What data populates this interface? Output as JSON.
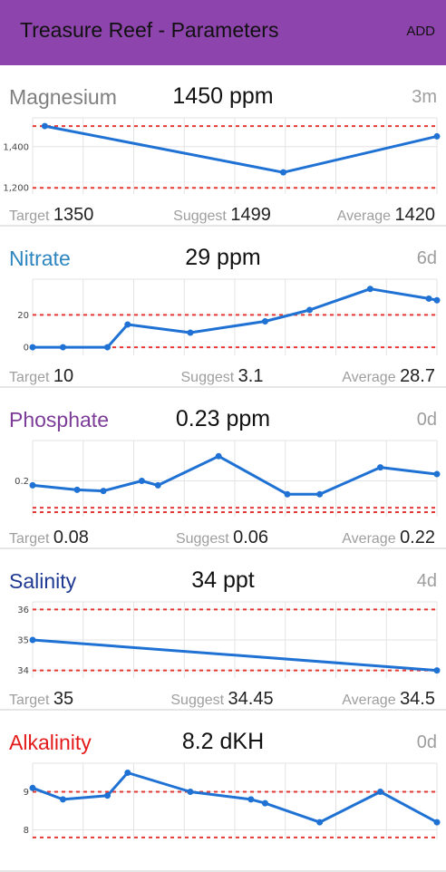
{
  "app_bar": {
    "title": "Treasure Reef - Parameters",
    "add_label": "ADD",
    "background": "#8e44ad"
  },
  "labels": {
    "target": "Target",
    "suggest": "Suggest",
    "average": "Average"
  },
  "parameters": [
    {
      "id": "magnesium",
      "name": "Magnesium",
      "name_color": "#7f7f7f",
      "value": "1450 ppm",
      "age": "3m",
      "target": "1350",
      "suggest": "1499",
      "average": "1420",
      "chart_data": {
        "type": "line",
        "y_ticks": [
          1200,
          1400
        ],
        "y_tick_labels": [
          "1,200",
          "1,400"
        ],
        "ylim": [
          1170,
          1540
        ],
        "limit_lines": [
          1200,
          1500
        ],
        "points": [
          [
            0.03,
            1500
          ],
          [
            0.62,
            1275
          ],
          [
            1.0,
            1450
          ]
        ],
        "grid": true
      }
    },
    {
      "id": "nitrate",
      "name": "Nitrate",
      "name_color": "#2e86c1",
      "value": "29 ppm",
      "age": "6d",
      "target": "10",
      "suggest": "3.1",
      "average": "28.7",
      "chart_data": {
        "type": "line",
        "y_ticks": [
          0,
          20
        ],
        "y_tick_labels": [
          "0",
          "20"
        ],
        "ylim": [
          -5,
          42
        ],
        "limit_lines": [
          0,
          20
        ],
        "points": [
          [
            0.0,
            0
          ],
          [
            0.075,
            0
          ],
          [
            0.185,
            0
          ],
          [
            0.235,
            14
          ],
          [
            0.39,
            9
          ],
          [
            0.575,
            16
          ],
          [
            0.685,
            23
          ],
          [
            0.835,
            36
          ],
          [
            0.98,
            30
          ],
          [
            1.0,
            29
          ]
        ],
        "grid": true
      }
    },
    {
      "id": "phosphate",
      "name": "Phosphate",
      "name_color": "#7d3c98",
      "value": "0.23 ppm",
      "age": "0d",
      "target": "0.08",
      "suggest": "0.06",
      "average": "0.22",
      "chart_data": {
        "type": "line",
        "y_ticks": [
          0.2
        ],
        "y_tick_labels": [
          "0.2"
        ],
        "ylim": [
          0.04,
          0.38
        ],
        "limit_lines": [
          0.08,
          0.06
        ],
        "points": [
          [
            0.0,
            0.18
          ],
          [
            0.11,
            0.16
          ],
          [
            0.175,
            0.155
          ],
          [
            0.27,
            0.2
          ],
          [
            0.31,
            0.18
          ],
          [
            0.46,
            0.31
          ],
          [
            0.63,
            0.14
          ],
          [
            0.71,
            0.14
          ],
          [
            0.86,
            0.26
          ],
          [
            1.0,
            0.23
          ]
        ],
        "grid": true
      }
    },
    {
      "id": "salinity",
      "name": "Salinity",
      "name_color": "#1f3a93",
      "value": "34 ppt",
      "age": "4d",
      "target": "35",
      "suggest": "34.45",
      "average": "34.5",
      "chart_data": {
        "type": "line",
        "y_ticks": [
          34,
          35,
          36
        ],
        "y_tick_labels": [
          "34",
          "35",
          "36"
        ],
        "ylim": [
          33.75,
          36.25
        ],
        "limit_lines": [
          34,
          36
        ],
        "points": [
          [
            0.0,
            35
          ],
          [
            1.0,
            34
          ]
        ],
        "grid": true
      }
    },
    {
      "id": "alkalinity",
      "name": "Alkalinity",
      "name_color": "#e41b1b",
      "value": "8.2 dKH",
      "age": "0d",
      "target": "",
      "suggest": "",
      "average": "",
      "chart_data": {
        "type": "line",
        "y_ticks": [
          8,
          9
        ],
        "y_tick_labels": [
          "8",
          "9"
        ],
        "ylim": [
          7.75,
          9.75
        ],
        "limit_lines": [
          9,
          7.8
        ],
        "points": [
          [
            0.0,
            9.1
          ],
          [
            0.075,
            8.8
          ],
          [
            0.185,
            8.9
          ],
          [
            0.235,
            9.5
          ],
          [
            0.39,
            9.0
          ],
          [
            0.54,
            8.8
          ],
          [
            0.575,
            8.7
          ],
          [
            0.71,
            8.2
          ],
          [
            0.86,
            9.0
          ],
          [
            1.0,
            8.2
          ]
        ],
        "grid": true
      }
    }
  ],
  "colors": {
    "line": "#1f72d4",
    "limit": "#e53935",
    "grid": "#e3e3e3",
    "muted_text": "#9e9e9e",
    "divider": "#e6e6e6"
  }
}
